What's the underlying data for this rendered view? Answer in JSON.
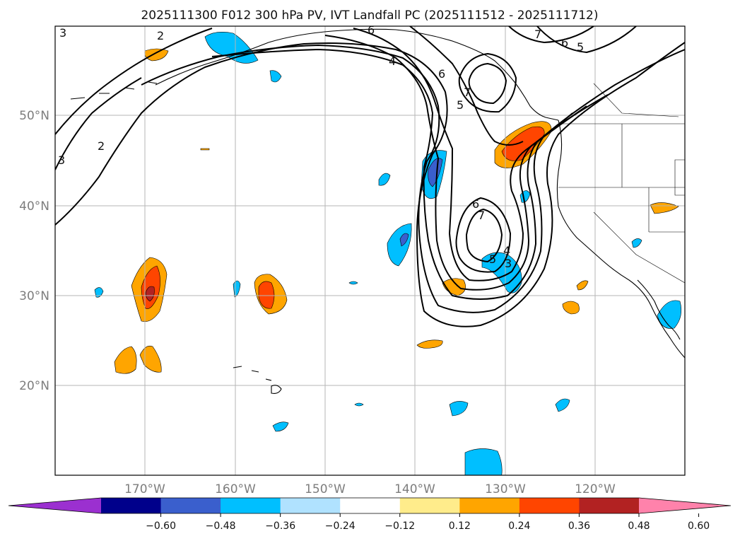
{
  "title": "2025111300 F012 300 hPa PV, IVT Landfall PC (2025111512 - 2025111712)",
  "lat_labels": [
    "50°N",
    "40°N",
    "30°N",
    "20°N"
  ],
  "lon_labels": [
    "170°W",
    "160°W",
    "150°W",
    "140°W",
    "130°W",
    "120°W"
  ],
  "colorbar": {
    "ticks": [
      "−0.60",
      "−0.48",
      "−0.36",
      "−0.24",
      "−0.12",
      "0.12",
      "0.24",
      "0.36",
      "0.48",
      "0.60"
    ],
    "colors": [
      "#9b30d0",
      "#00008b",
      "#3a5fcd",
      "#00bfff",
      "#b0e2ff",
      "#ffffff",
      "#ffec8b",
      "#ffa500",
      "#ff4500",
      "#b22222",
      "#ff82ab"
    ]
  },
  "contour_labels": [
    "2",
    "3",
    "2",
    "3",
    "4",
    "5",
    "6",
    "7",
    "6",
    "5",
    "6",
    "7",
    "6",
    "7",
    "5",
    "4",
    "3"
  ],
  "colors": {
    "neg_light": "#00bfff",
    "neg_mid": "#3a5fcd",
    "pos_orange": "#ffa500",
    "pos_red": "#ff4500",
    "pos_dark": "#b22222"
  }
}
